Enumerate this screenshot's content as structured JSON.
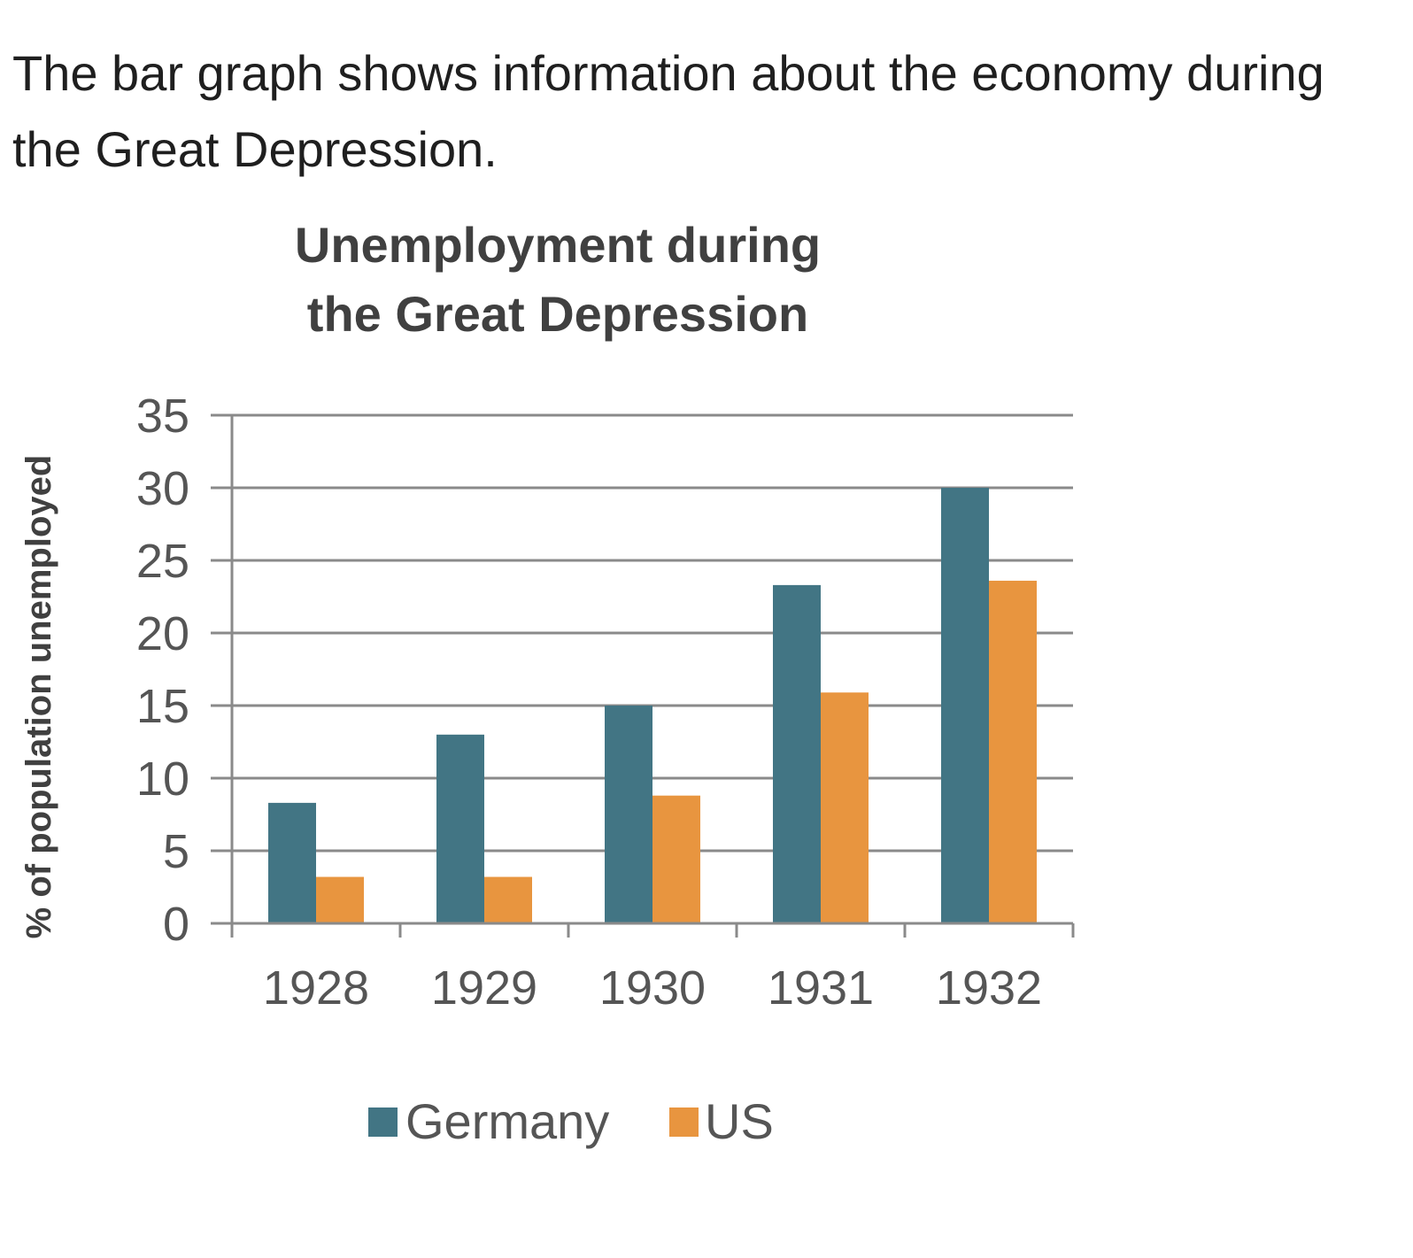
{
  "question": {
    "text": "The bar graph shows information about the economy during the Great Depression."
  },
  "chart_data": {
    "type": "bar",
    "title_lines": [
      "Unemployment during",
      "the Great Depression"
    ],
    "categories": [
      "1928",
      "1929",
      "1930",
      "1931",
      "1932"
    ],
    "series": [
      {
        "name": "Germany",
        "color": "#427584",
        "values": [
          8.3,
          13,
          15,
          23.3,
          30
        ]
      },
      {
        "name": "US",
        "color": "#e8953f",
        "values": [
          3.2,
          3.2,
          8.8,
          15.9,
          23.6
        ]
      }
    ],
    "xlabel": "",
    "ylabel": "% of population unemployed",
    "ylim": [
      0,
      35
    ],
    "yticks": [
      "0",
      "5",
      "10",
      "15",
      "20",
      "25",
      "30",
      "35"
    ],
    "grid": true,
    "legend_position": "bottom"
  }
}
